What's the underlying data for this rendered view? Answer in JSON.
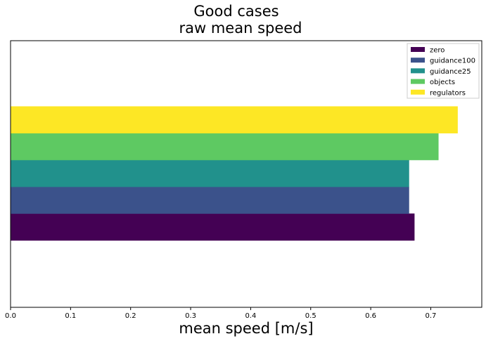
{
  "chart_data": {
    "type": "bar",
    "orientation": "horizontal",
    "title_lines": [
      "Good cases",
      "raw mean speed"
    ],
    "xlabel": "mean speed [m/s]",
    "ylabel": "",
    "xlim": [
      0,
      0.785
    ],
    "xticks": [
      "0.0",
      "0.1",
      "0.2",
      "0.3",
      "0.4",
      "0.5",
      "0.6",
      "0.7"
    ],
    "xtick_values": [
      0.0,
      0.1,
      0.2,
      0.3,
      0.4,
      0.5,
      0.6,
      0.7
    ],
    "grid": false,
    "legend_position": "top-right",
    "series": [
      {
        "name": "zero",
        "value": 0.673,
        "color": "#440154"
      },
      {
        "name": "guidance100",
        "value": 0.664,
        "color": "#3b528b"
      },
      {
        "name": "guidance25",
        "value": 0.664,
        "color": "#21918c"
      },
      {
        "name": "objects",
        "value": 0.713,
        "color": "#5ec962"
      },
      {
        "name": "regulators",
        "value": 0.745,
        "color": "#fde725"
      }
    ]
  }
}
